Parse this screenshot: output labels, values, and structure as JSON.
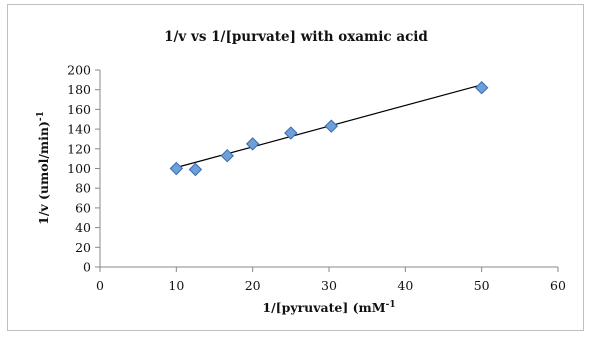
{
  "chart_data": {
    "type": "scatter",
    "title": "1/v vs 1/[purvate] with oxamic acid",
    "xlabel": "1/[pyruvate] (mM",
    "xlabel_sup": "-1",
    "ylabel": "1/v (umol/min)",
    "ylabel_sup": "-1",
    "xlim": [
      0,
      60
    ],
    "ylim": [
      0,
      200
    ],
    "x_ticks": [
      0,
      10,
      20,
      30,
      40,
      50,
      60
    ],
    "y_ticks": [
      0,
      20,
      40,
      60,
      80,
      100,
      120,
      140,
      160,
      180,
      200
    ],
    "grid": false,
    "marker": "diamond",
    "marker_color": "#6f9fd8",
    "marker_edge_color": "#3a6cb0",
    "trendline_color": "#000000",
    "series": [
      {
        "x": [
          10,
          12.5,
          16.67,
          20,
          25,
          30.3,
          50
        ],
        "y": [
          100,
          99,
          113,
          125,
          136,
          143,
          182
        ]
      }
    ],
    "trendline": {
      "x": [
        10,
        50
      ],
      "y": [
        101,
        185
      ]
    }
  }
}
